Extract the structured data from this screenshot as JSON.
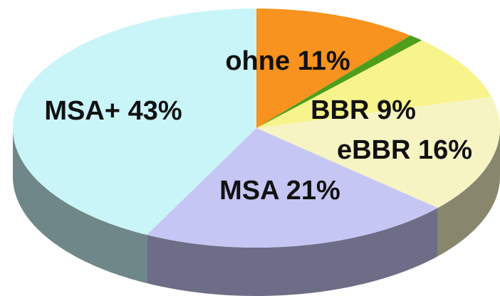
{
  "chart_data": {
    "type": "pie",
    "categories": [
      "ohne",
      null,
      "BBR",
      "eBBR",
      "MSA",
      "MSA+"
    ],
    "values": [
      11,
      1,
      9,
      16,
      21,
      43
    ],
    "value_labels": [
      "11%",
      null,
      "9%",
      "16%",
      "21%",
      "43%"
    ],
    "colors": [
      "#f7931e",
      "#4e9e1c",
      "#f8f48c",
      "#f7f4c4",
      "#c6c6f5",
      "#c9f5f9"
    ]
  }
}
